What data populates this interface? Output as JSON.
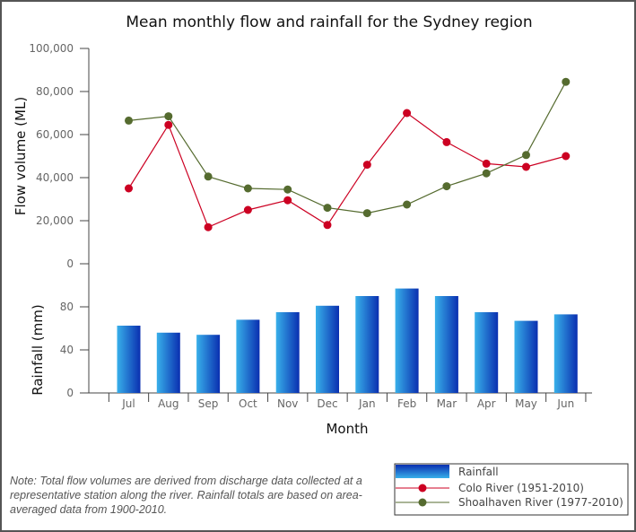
{
  "chart_data": {
    "type": "line+bar",
    "title": "Mean monthly flow and rainfall for the Sydney region",
    "xlabel": "Month",
    "categories": [
      "Jul",
      "Aug",
      "Sep",
      "Oct",
      "Nov",
      "Dec",
      "Jan",
      "Feb",
      "Mar",
      "Apr",
      "May",
      "Jun"
    ],
    "flow_panel": {
      "type": "line",
      "ylabel": "Flow volume (ML)",
      "ylim": [
        0,
        100000
      ],
      "yticks": [
        0,
        20000,
        40000,
        60000,
        80000,
        100000
      ],
      "ytick_labels": [
        "0",
        "20,000",
        "40,000",
        "60,000",
        "80,000",
        "100,000"
      ],
      "series": [
        {
          "name": "Colo River (1951-2010)",
          "color": "#cc0022",
          "values": [
            35000,
            64500,
            17000,
            25000,
            29500,
            18000,
            46000,
            70000,
            56500,
            46500,
            45000,
            50000
          ]
        },
        {
          "name": "Shoalhaven River (1977-2010)",
          "color": "#556b2f",
          "values": [
            66500,
            68500,
            40500,
            35000,
            34500,
            26000,
            23500,
            27500,
            36000,
            42000,
            50500,
            84500
          ]
        }
      ]
    },
    "rain_panel": {
      "type": "bar",
      "ylabel": "Rainfall (mm)",
      "ylim": [
        0,
        120
      ],
      "yticks": [
        0,
        40,
        80
      ],
      "ytick_labels": [
        "0",
        "40",
        "80"
      ],
      "series": [
        {
          "name": "Rainfall",
          "color_light": "#38b0ea",
          "color_dark": "#0a2fb0",
          "values": [
            62.5,
            56,
            54,
            68,
            75,
            81,
            90,
            97,
            90,
            75,
            67,
            73
          ]
        }
      ]
    },
    "legend": {
      "placement": "bottom-right",
      "entries": [
        "Rainfall",
        "Colo River (1951-2010)",
        "Shoalhaven River (1977-2010)"
      ]
    },
    "note": "Note: Total flow volumes are derived from discharge data collected at a representative station along the river. Rainfall totals are based on area-averaged data from 1900-2010."
  }
}
